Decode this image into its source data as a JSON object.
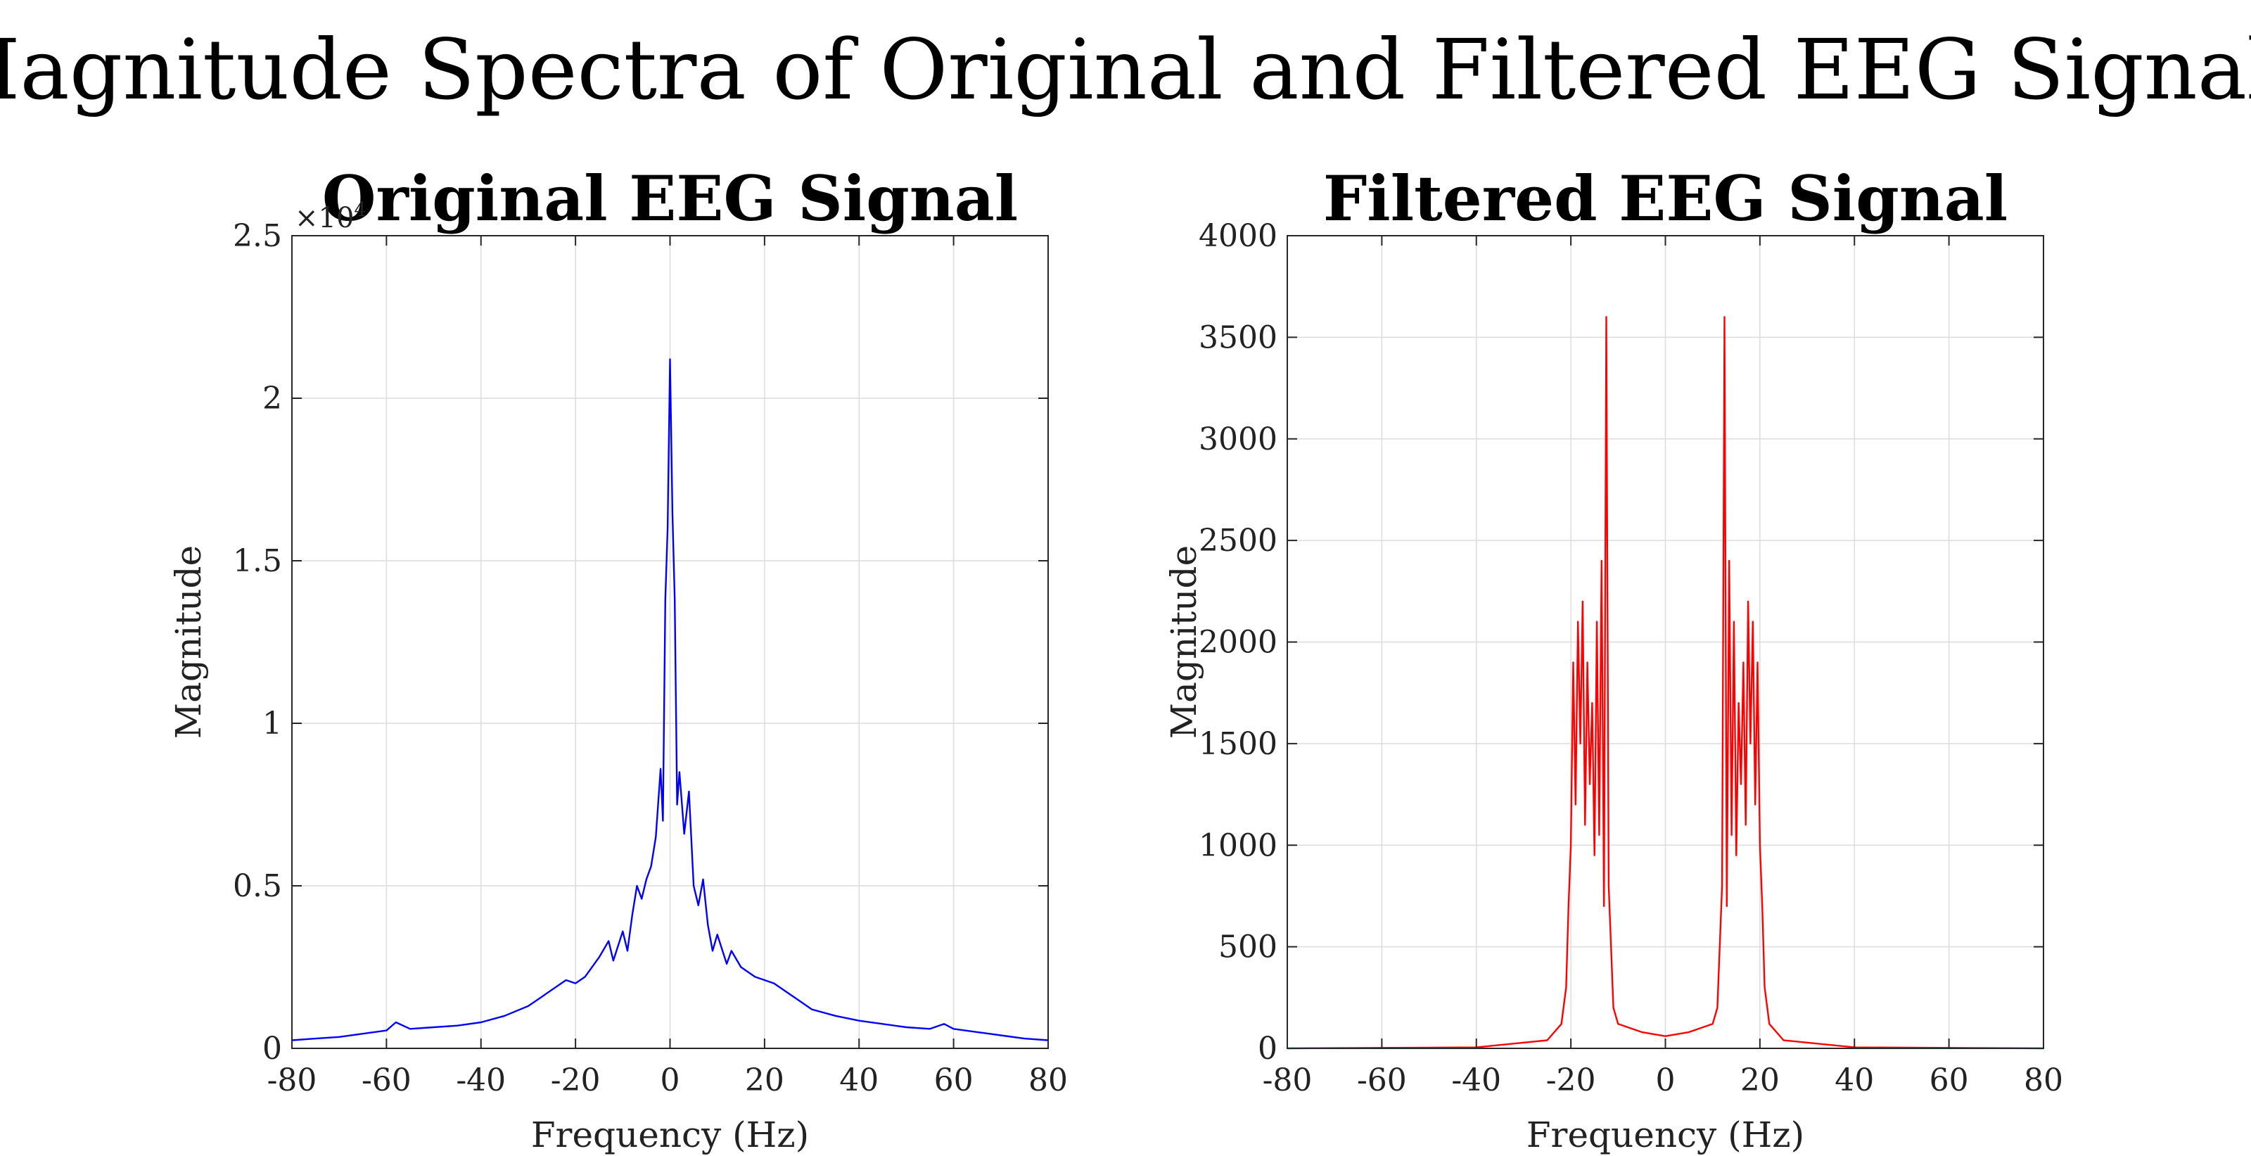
{
  "figure": {
    "suptitle": "Magnitude Spectra of Original and Filtered EEG Signals"
  },
  "chart_data": [
    {
      "type": "line",
      "title": "Original EEG Signal",
      "xlabel": "Frequency (Hz)",
      "ylabel": "Magnitude",
      "xlim": [
        -80,
        80
      ],
      "ylim": [
        0,
        25000
      ],
      "x_ticks": [
        -80,
        -60,
        -40,
        -20,
        0,
        20,
        40,
        60,
        80
      ],
      "x_tick_labels": [
        "-80",
        "-60",
        "-40",
        "-20",
        "0",
        "20",
        "40",
        "60",
        "80"
      ],
      "y_ticks": [
        0,
        5000,
        10000,
        15000,
        20000,
        25000
      ],
      "y_tick_labels": [
        "0",
        "0.5",
        "1",
        "1.5",
        "2",
        "2.5"
      ],
      "y_exponent_label": "×10",
      "y_exponent_power": "4",
      "grid": true,
      "color": "#0000ff",
      "series": [
        {
          "x": [
            -80,
            -75,
            -70,
            -65,
            -60,
            -58,
            -55,
            -50,
            -45,
            -40,
            -35,
            -30,
            -28,
            -25,
            -22,
            -20,
            -18,
            -15,
            -13,
            -12,
            -10,
            -9,
            -8,
            -7,
            -6,
            -5,
            -4,
            -3,
            -2,
            -1.5,
            -1,
            -0.5,
            0,
            0.5,
            1,
            1.5,
            2,
            3,
            4,
            5,
            6,
            7,
            8,
            9,
            10,
            12,
            13,
            15,
            18,
            20,
            22,
            25,
            28,
            30,
            35,
            40,
            45,
            50,
            55,
            58,
            60,
            65,
            70,
            75,
            80
          ],
          "y": [
            250,
            300,
            350,
            450,
            550,
            800,
            600,
            650,
            700,
            800,
            1000,
            1300,
            1500,
            1800,
            2100,
            2000,
            2200,
            2800,
            3300,
            2700,
            3600,
            3000,
            4100,
            5000,
            4600,
            5200,
            5600,
            6500,
            8600,
            7000,
            13800,
            16000,
            21200,
            16500,
            13800,
            7500,
            8500,
            6600,
            7900,
            5000,
            4400,
            5200,
            3800,
            3000,
            3500,
            2600,
            3000,
            2500,
            2200,
            2100,
            2000,
            1700,
            1400,
            1200,
            1000,
            850,
            750,
            650,
            600,
            750,
            600,
            500,
            400,
            300,
            250
          ]
        }
      ]
    },
    {
      "type": "line",
      "title": "Filtered EEG Signal",
      "xlabel": "Frequency (Hz)",
      "ylabel": "Magnitude",
      "xlim": [
        -80,
        80
      ],
      "ylim": [
        0,
        4000
      ],
      "x_ticks": [
        -80,
        -60,
        -40,
        -20,
        0,
        20,
        40,
        60,
        80
      ],
      "x_tick_labels": [
        "-80",
        "-60",
        "-40",
        "-20",
        "0",
        "20",
        "40",
        "60",
        "80"
      ],
      "y_ticks": [
        0,
        500,
        1000,
        1500,
        2000,
        2500,
        3000,
        3500,
        4000
      ],
      "y_tick_labels": [
        "0",
        "500",
        "1000",
        "1500",
        "2000",
        "2500",
        "3000",
        "3500",
        "4000"
      ],
      "grid": true,
      "color": "#ff0000",
      "series": [
        {
          "x": [
            -80,
            -40,
            -25,
            -22,
            -21,
            -20.5,
            -20,
            -19.5,
            -19,
            -18.5,
            -18,
            -17.5,
            -17,
            -16.5,
            -16,
            -15.5,
            -15,
            -14.5,
            -14,
            -13.5,
            -13,
            -12.5,
            -12,
            -11,
            -10,
            -5,
            0,
            5,
            10,
            11,
            12,
            12.5,
            13,
            13.5,
            14,
            14.5,
            15,
            15.5,
            16,
            16.5,
            17,
            17.5,
            18,
            18.5,
            19,
            19.5,
            20,
            20.5,
            21,
            22,
            25,
            40,
            80
          ],
          "y": [
            0,
            5,
            40,
            120,
            300,
            700,
            1000,
            1900,
            1200,
            2100,
            1500,
            2200,
            1100,
            1900,
            1300,
            1700,
            950,
            2100,
            1050,
            2400,
            700,
            3600,
            800,
            200,
            120,
            80,
            60,
            80,
            120,
            200,
            800,
            3600,
            700,
            2400,
            1050,
            2100,
            950,
            1700,
            1300,
            1900,
            1100,
            2200,
            1500,
            2100,
            1200,
            1900,
            1000,
            700,
            300,
            120,
            40,
            5,
            0
          ]
        }
      ]
    }
  ]
}
